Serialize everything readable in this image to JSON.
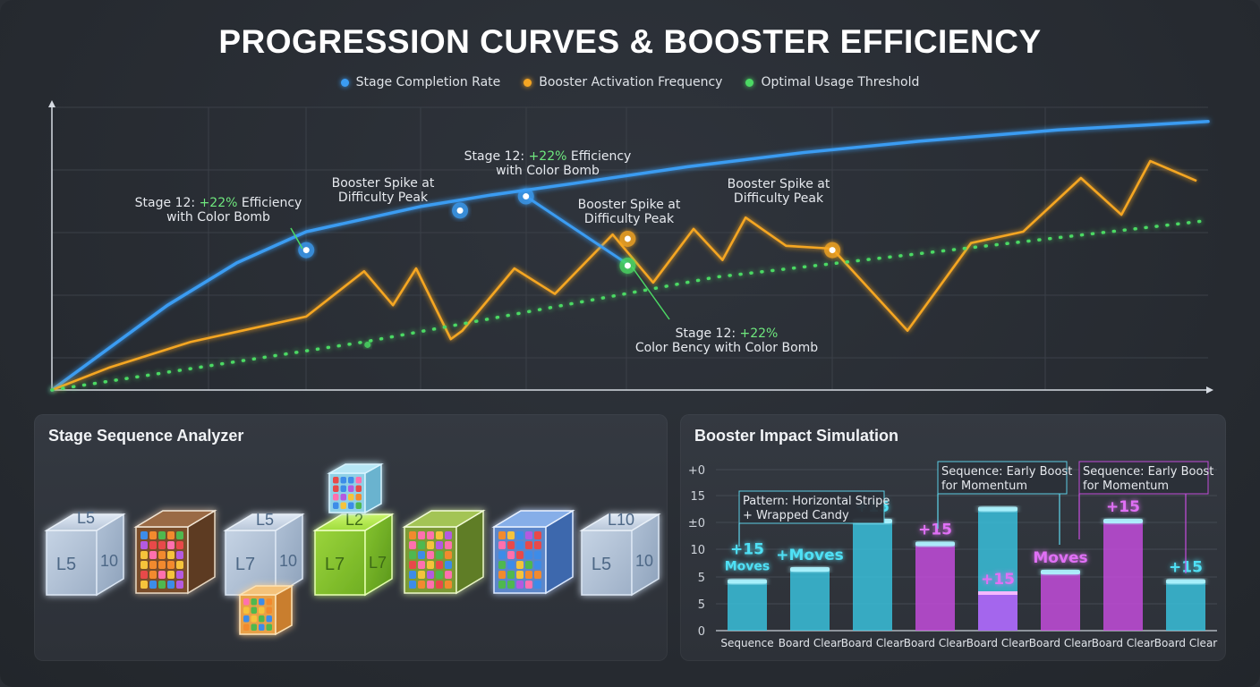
{
  "title": "PROGRESSION CURVES & BOOSTER EFFICIENCY",
  "legend": [
    {
      "label": "Stage Completion Rate",
      "color": "#3b9cf2"
    },
    {
      "label": "Booster Activation Frequency",
      "color": "#f5a623"
    },
    {
      "label": "Optimal Usage Threshold",
      "color": "#4cd964"
    }
  ],
  "chart_data": [
    {
      "type": "line",
      "title": "PROGRESSION CURVES & BOOSTER EFFICIENCY",
      "xlabel": "",
      "ylabel": "",
      "grid": true,
      "legend_position": "top",
      "xlim": [
        0,
        100
      ],
      "ylim": [
        0,
        100
      ],
      "series": [
        {
          "name": "Stage Completion Rate",
          "color": "#3b9cf2",
          "x": [
            0,
            5,
            10,
            16,
            22,
            32,
            38,
            45,
            55,
            65,
            75,
            87,
            100
          ],
          "y": [
            0,
            15,
            30,
            45,
            56,
            65,
            69,
            73,
            79,
            84,
            88,
            92,
            95
          ]
        },
        {
          "name": "Booster Activation Frequency",
          "color": "#f5a623",
          "x": [
            0,
            5,
            12,
            22,
            27,
            29.5,
            31.5,
            34.5,
            35.5,
            40,
            43.5,
            48.5,
            52,
            55.5,
            58,
            60,
            63.5,
            67.5,
            74,
            79.5,
            84,
            89,
            92.5,
            95,
            99
          ],
          "y": [
            0,
            8,
            17,
            26,
            42,
            30,
            43,
            18,
            21,
            43,
            34,
            55,
            38,
            57,
            46,
            61,
            51,
            50,
            21,
            52,
            56,
            75,
            62,
            81,
            74
          ]
        },
        {
          "name": "Optimal Usage Threshold",
          "color": "#4cd964",
          "x": [
            0,
            27,
            57.5,
            100
          ],
          "y": [
            0,
            17,
            40,
            60
          ]
        }
      ],
      "annotations": [
        {
          "text_a": "Stage 12: ",
          "text_b": "+22%",
          "text_c": " Efficiency",
          "line2": "with Color Bomb"
        },
        {
          "text": "Booster Spike at",
          "line2": "Difficulty Peak"
        },
        {
          "text_a": "Stage 12: ",
          "text_b": "+22%",
          "text_c": " Efficiency",
          "line2": "with Color Bomb"
        },
        {
          "text": "Booster Spike at",
          "line2": "Difficulty Peak"
        },
        {
          "text": "Booster Spike at",
          "line2": "Difficulty Peak"
        },
        {
          "text_a": "Stage 12: ",
          "text_b": "+22%",
          "text_c": "",
          "line2": "Color Bency with Color Bomb"
        }
      ]
    },
    {
      "type": "bar",
      "title": "Booster Impact Simulation",
      "y_tick_labels": [
        "+0",
        "15",
        "±0",
        "10",
        "5",
        "5",
        "0"
      ],
      "categories": [
        "Sequence",
        "Board Clear",
        "Board Clear",
        "Board Clear",
        "Board Clear",
        "Board Clear",
        "Board Clear",
        "Board Clear"
      ],
      "values": [
        3.7,
        4.6,
        8.2,
        6.5,
        9.1,
        4.4,
        8.2,
        3.7
      ],
      "overlay_values": [
        null,
        null,
        null,
        null,
        2.8,
        null,
        null,
        null
      ],
      "bar_colors": [
        "#39c4e0",
        "#39c4e0",
        "#39c4e0",
        "#c84de0",
        "#39c4e0",
        "#c84de0",
        "#c84de0",
        "#39c4e0"
      ],
      "overlay_color": "#b05ef2",
      "data_labels": [
        "+15\nMoves",
        "+Moves",
        "+15",
        "+15",
        "+15",
        "Moves",
        "+15",
        "+15"
      ],
      "label_colors": [
        "#4fe0f5",
        "#4fe0f5",
        "#4fe0f5",
        "#e070f5",
        "#e070f5",
        "#e070f5",
        "#e070f5",
        "#4fe0f5"
      ],
      "callouts": [
        {
          "line1": "Pattern: Horizontal Stripe",
          "line2": "+ Wrapped Candy"
        },
        {
          "line1": "Sequence: Early Boost",
          "line2": "for Momentum"
        },
        {
          "line1": "Sequence: Early Boost",
          "line2": "for Momentum"
        }
      ]
    }
  ],
  "left_panel": {
    "title": "Stage Sequence Analyzer",
    "cubes": [
      {
        "kind": "label",
        "top": "L5",
        "left": "L5",
        "right": "10"
      },
      {
        "kind": "candy"
      },
      {
        "kind": "label",
        "top": "L5",
        "left": "L7",
        "right": "10"
      },
      {
        "kind": "green",
        "top": "L2",
        "left": "L7",
        "right": "L7"
      },
      {
        "kind": "candy"
      },
      {
        "kind": "candy-blue"
      },
      {
        "kind": "label",
        "top": "L10",
        "left": "L5",
        "right": "10"
      }
    ]
  },
  "right_panel": {
    "title": "Booster Impact Simulation"
  }
}
